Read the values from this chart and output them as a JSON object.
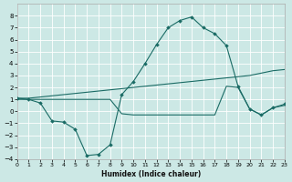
{
  "xlabel": "Humidex (Indice chaleur)",
  "background_color": "#cce8e5",
  "grid_color": "#ffffff",
  "line_color": "#1a6b65",
  "xlim": [
    0,
    23
  ],
  "ylim": [
    -4,
    9
  ],
  "xticks": [
    0,
    1,
    2,
    3,
    4,
    5,
    6,
    7,
    8,
    9,
    10,
    11,
    12,
    13,
    14,
    15,
    16,
    17,
    18,
    19,
    20,
    21,
    22,
    23
  ],
  "yticks": [
    -4,
    -3,
    -2,
    -1,
    0,
    1,
    2,
    3,
    4,
    5,
    6,
    7,
    8
  ],
  "curve_x": [
    0,
    1,
    2,
    3,
    4,
    5,
    6,
    7,
    8,
    9,
    10,
    11,
    12,
    13,
    14,
    15,
    16,
    17,
    18,
    19,
    20,
    21,
    22,
    23
  ],
  "curve_y": [
    1.1,
    1.0,
    0.7,
    -0.8,
    -0.9,
    -1.5,
    -3.7,
    -3.6,
    -2.8,
    1.4,
    2.5,
    4.0,
    5.6,
    7.0,
    7.6,
    7.9,
    7.0,
    6.5,
    5.5,
    2.1,
    0.2,
    -0.3,
    0.3,
    0.6
  ],
  "line2_x": [
    0,
    1,
    2,
    3,
    4,
    5,
    6,
    7,
    8,
    9,
    10,
    11,
    12,
    13,
    14,
    15,
    16,
    17,
    18,
    19,
    20,
    21,
    22,
    23
  ],
  "line2_y": [
    1.1,
    1.1,
    1.2,
    1.3,
    1.4,
    1.5,
    1.6,
    1.7,
    1.8,
    1.9,
    2.0,
    2.1,
    2.2,
    2.3,
    2.4,
    2.5,
    2.6,
    2.7,
    2.8,
    2.9,
    3.0,
    3.2,
    3.4,
    3.5
  ],
  "line3_x": [
    0,
    1,
    2,
    3,
    4,
    5,
    6,
    7,
    8,
    9,
    10,
    11,
    12,
    13,
    14,
    15,
    16,
    17,
    18,
    19,
    20,
    21,
    22,
    23
  ],
  "line3_y": [
    1.0,
    1.0,
    1.0,
    1.0,
    1.0,
    1.0,
    1.0,
    1.0,
    1.0,
    -0.2,
    -0.3,
    -0.3,
    -0.3,
    -0.3,
    -0.3,
    -0.3,
    -0.3,
    -0.3,
    2.1,
    2.0,
    0.2,
    -0.3,
    0.3,
    0.5
  ]
}
